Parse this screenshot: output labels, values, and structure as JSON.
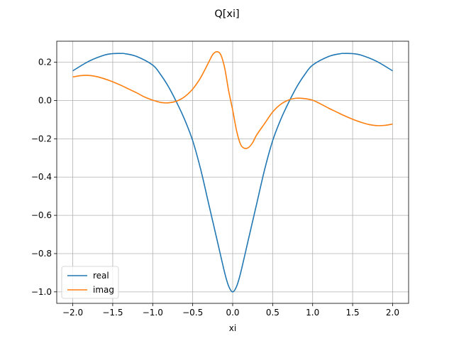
{
  "chart_data": {
    "type": "line",
    "title": "Q[xi]",
    "xlabel": "xi",
    "ylabel": "",
    "xlim": [
      -2.2,
      2.2
    ],
    "ylim": [
      -1.06,
      0.31
    ],
    "xticks": [
      -2.0,
      -1.5,
      -1.0,
      -0.5,
      0.0,
      0.5,
      1.0,
      1.5,
      2.0
    ],
    "xtick_labels": [
      "−2.0",
      "−1.5",
      "−1.0",
      "−0.5",
      "0.0",
      "0.5",
      "1.0",
      "1.5",
      "2.0"
    ],
    "yticks": [
      -1.0,
      -0.8,
      -0.6,
      -0.4,
      -0.2,
      0.0,
      0.2
    ],
    "ytick_labels": [
      "−1.0",
      "−0.8",
      "−0.6",
      "−0.4",
      "−0.2",
      "0.0",
      "0.2"
    ],
    "grid": true,
    "legend_position": "lower-left",
    "series": [
      {
        "name": "real",
        "color": "#1f77b4",
        "x": [
          -2.0,
          -1.8,
          -1.6,
          -1.5,
          -1.4,
          -1.35,
          -1.2,
          -1.0,
          -0.9,
          -0.8,
          -0.7,
          -0.6,
          -0.5,
          -0.4,
          -0.3,
          -0.2,
          -0.1,
          -0.05,
          0.0,
          0.05,
          0.1,
          0.2,
          0.3,
          0.4,
          0.5,
          0.6,
          0.7,
          0.8,
          0.9,
          1.0,
          1.2,
          1.35,
          1.4,
          1.5,
          1.6,
          1.8,
          2.0
        ],
        "y": [
          0.155,
          0.205,
          0.238,
          0.245,
          0.246,
          0.245,
          0.23,
          0.185,
          0.135,
          0.07,
          -0.01,
          -0.1,
          -0.21,
          -0.36,
          -0.54,
          -0.72,
          -0.9,
          -0.97,
          -1.0,
          -0.97,
          -0.9,
          -0.72,
          -0.54,
          -0.36,
          -0.21,
          -0.1,
          -0.01,
          0.07,
          0.135,
          0.185,
          0.23,
          0.245,
          0.246,
          0.245,
          0.238,
          0.205,
          0.155
        ]
      },
      {
        "name": "imag",
        "color": "#ff7f0e",
        "x": [
          -2.0,
          -1.9,
          -1.8,
          -1.7,
          -1.6,
          -1.5,
          -1.4,
          -1.3,
          -1.2,
          -1.1,
          -1.0,
          -0.9,
          -0.8,
          -0.7,
          -0.6,
          -0.5,
          -0.4,
          -0.3,
          -0.25,
          -0.2,
          -0.15,
          -0.1,
          -0.05,
          0.0,
          0.05,
          0.1,
          0.15,
          0.2,
          0.25,
          0.3,
          0.4,
          0.5,
          0.6,
          0.7,
          0.8,
          0.9,
          1.0,
          1.1,
          1.2,
          1.3,
          1.4,
          1.5,
          1.6,
          1.7,
          1.8,
          1.9,
          2.0
        ],
        "y": [
          0.123,
          0.13,
          0.131,
          0.125,
          0.113,
          0.098,
          0.08,
          0.06,
          0.04,
          0.018,
          0.002,
          -0.01,
          -0.012,
          -0.003,
          0.02,
          0.06,
          0.12,
          0.2,
          0.24,
          0.255,
          0.24,
          0.17,
          0.05,
          -0.05,
          -0.16,
          -0.23,
          -0.25,
          -0.245,
          -0.22,
          -0.18,
          -0.12,
          -0.06,
          -0.02,
          0.003,
          0.012,
          0.01,
          0.002,
          -0.018,
          -0.04,
          -0.06,
          -0.08,
          -0.098,
          -0.113,
          -0.125,
          -0.131,
          -0.13,
          -0.123
        ]
      }
    ]
  }
}
